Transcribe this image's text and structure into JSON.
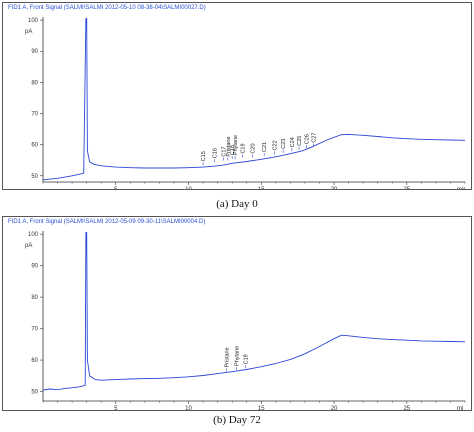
{
  "chart_data": [
    {
      "type": "line",
      "header": "FID1 A, Front Signal (SALMI\\SALMI 2012-05-10 08-38-04\\SALMI00027.D)",
      "caption": "(a) Day 0",
      "ylabel": "pA",
      "xunit": "mir",
      "ylim": [
        48,
        101
      ],
      "xlim": [
        0,
        29
      ],
      "yticks": [
        50,
        60,
        70,
        80,
        90,
        100
      ],
      "xticks": [
        5,
        10,
        15,
        20,
        25
      ],
      "grid": false,
      "color": "#2a45d8",
      "series": [
        {
          "x": [
            0,
            1,
            2,
            2.8,
            2.95,
            3.0,
            3.05,
            3.2,
            3.5,
            4,
            5,
            6,
            7,
            8,
            9,
            10,
            11,
            12,
            12.6,
            13,
            14,
            15,
            16,
            17,
            17.8,
            18.5,
            19.5,
            20.5,
            21,
            22,
            23,
            24,
            25,
            26,
            27,
            28,
            29
          ],
          "y": [
            48.7,
            49.2,
            50,
            50.8,
            100.5,
            100.5,
            58,
            54.5,
            53.7,
            53.2,
            52.8,
            52.6,
            52.5,
            52.5,
            52.5,
            52.6,
            52.8,
            53.2,
            53.6,
            54,
            54.6,
            55.3,
            56.1,
            57.1,
            58,
            59.3,
            61.5,
            63.2,
            63.3,
            63,
            62.6,
            62.2,
            61.9,
            61.7,
            61.6,
            61.5,
            61.4
          ]
        }
      ],
      "annotations": [
        {
          "text": "C15",
          "x": 11.0,
          "y": 54
        },
        {
          "text": "C16",
          "x": 11.8,
          "y": 55
        },
        {
          "text": "C17",
          "x": 12.4,
          "y": 55.5
        },
        {
          "text": "Pristane",
          "x": 12.7,
          "y": 55.5
        },
        {
          "text": "C18",
          "x": 13.0,
          "y": 56
        },
        {
          "text": "Phytane",
          "x": 13.2,
          "y": 56
        },
        {
          "text": "C19",
          "x": 13.7,
          "y": 56.5
        },
        {
          "text": "C20",
          "x": 14.4,
          "y": 56.5
        },
        {
          "text": "C21",
          "x": 15.2,
          "y": 57
        },
        {
          "text": "C22",
          "x": 15.9,
          "y": 57.5
        },
        {
          "text": "C23",
          "x": 16.5,
          "y": 58
        },
        {
          "text": "C24",
          "x": 17.1,
          "y": 58.5
        },
        {
          "text": "C25",
          "x": 17.6,
          "y": 59
        },
        {
          "text": "C26",
          "x": 18.1,
          "y": 59.5
        },
        {
          "text": "C27",
          "x": 18.6,
          "y": 60
        }
      ]
    },
    {
      "type": "line",
      "header": "FID1 A, Front Signal (SALMI\\SALMI 2012-05-09 09-30-11\\SALMI00004.D)",
      "caption": "(b) Day 72",
      "ylabel": "pA",
      "xunit": "mi",
      "ylim": [
        47,
        101
      ],
      "xlim": [
        0,
        29
      ],
      "yticks": [
        50,
        60,
        70,
        80,
        90,
        100
      ],
      "xticks": [
        5,
        10,
        15,
        20,
        25
      ],
      "grid": false,
      "color": "#2a45d8",
      "series": [
        {
          "x": [
            0,
            0.5,
            1,
            1.5,
            2,
            2.5,
            2.9,
            2.95,
            3.0,
            3.05,
            3.2,
            3.6,
            4,
            5,
            6,
            7,
            8,
            9,
            10,
            11,
            12,
            13,
            14,
            15,
            16,
            17,
            18,
            19,
            20,
            20.5,
            21,
            22,
            23,
            24,
            25,
            26,
            27,
            28,
            29
          ],
          "y": [
            50.5,
            50.8,
            50.6,
            51,
            51.2,
            51.5,
            52,
            100.5,
            100.5,
            60,
            55,
            53.8,
            53.6,
            53.8,
            54,
            54.1,
            54.2,
            54.4,
            54.7,
            55.1,
            55.7,
            56.3,
            57,
            57.9,
            58.9,
            60.2,
            62,
            64.3,
            66.8,
            67.9,
            67.7,
            67.2,
            66.8,
            66.5,
            66.3,
            66.1,
            66.0,
            65.9,
            65.8
          ]
        }
      ],
      "annotations": [
        {
          "text": "Pristane",
          "x": 12.6,
          "y": 57
        },
        {
          "text": "Phytane",
          "x": 13.3,
          "y": 57.5
        },
        {
          "text": "C19",
          "x": 13.9,
          "y": 58
        }
      ]
    }
  ]
}
